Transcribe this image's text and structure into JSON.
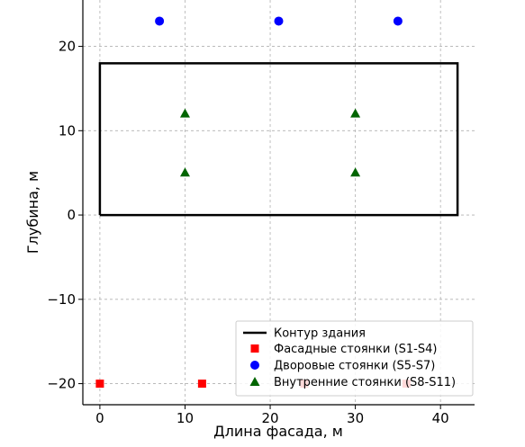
{
  "chart_data": {
    "type": "scatter",
    "xlabel": "Длина фасада, м",
    "ylabel": "Глубина, м",
    "xlim": [
      -2,
      44
    ],
    "ylim": [
      -22.5,
      25.5
    ],
    "xticks": [
      0,
      10,
      20,
      30,
      40
    ],
    "yticks": [
      -20,
      -10,
      0,
      10,
      20
    ],
    "grid": true,
    "legend_position": "bottom-right",
    "building_outline": {
      "name": "Контур здания",
      "color": "#000000",
      "x": [
        0,
        42,
        42,
        0,
        0
      ],
      "y": [
        0,
        0,
        18,
        18,
        0
      ]
    },
    "series": [
      {
        "name": "Фасадные стоянки (S1-S4)",
        "marker": "square",
        "color": "#ff0000",
        "points": [
          [
            0,
            -20
          ],
          [
            12,
            -20
          ],
          [
            24,
            -20
          ],
          [
            36,
            -20
          ]
        ]
      },
      {
        "name": "Дворовые стоянки (S5-S7)",
        "marker": "circle",
        "color": "#0000ff",
        "points": [
          [
            7,
            23
          ],
          [
            21,
            23
          ],
          [
            35,
            23
          ]
        ]
      },
      {
        "name": "Внутренние стоянки (S8-S11)",
        "marker": "triangle",
        "color": "#006400",
        "points": [
          [
            10,
            12
          ],
          [
            30,
            12
          ],
          [
            10,
            5
          ],
          [
            30,
            5
          ]
        ]
      }
    ]
  }
}
